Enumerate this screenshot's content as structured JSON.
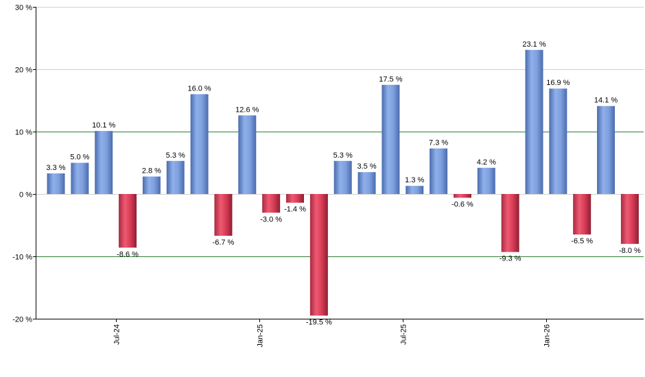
{
  "chart_data": {
    "type": "bar",
    "title": "",
    "xlabel": "",
    "ylabel": "",
    "ylim": [
      -20,
      30
    ],
    "y_ticks": [
      30,
      20,
      10,
      0,
      -10,
      -20
    ],
    "y_tick_labels": [
      "30 %",
      "20 %",
      "10 %",
      "0 %",
      "-10 %",
      "-20 %"
    ],
    "highlight_lines": [
      10,
      -10
    ],
    "grid": true,
    "legend": "none",
    "colors": {
      "positive": "#7fa0de",
      "positive_dark": "#4a6cae",
      "negative": "#e0465f",
      "negative_dark": "#8e1f33",
      "gridline": "#d0d0d0",
      "highlight_line": "#2e7d32",
      "axis": "#000000"
    },
    "values": [
      3.3,
      5.0,
      10.1,
      -8.6,
      2.8,
      5.3,
      16.0,
      -6.7,
      12.6,
      -3.0,
      -1.4,
      -19.5,
      5.3,
      3.5,
      17.5,
      1.3,
      7.3,
      -0.6,
      4.2,
      -9.3,
      23.1,
      16.9,
      -6.5,
      14.1,
      -8.0
    ],
    "value_labels": [
      "3.3 %",
      "5.0 %",
      "10.1 %",
      "-8.6 %",
      "2.8 %",
      "5.3 %",
      "16.0 %",
      "-6.7 %",
      "12.6 %",
      "-3.0 %",
      "-1.4 %",
      "-19.5 %",
      "5.3 %",
      "3.5 %",
      "17.5 %",
      "1.3 %",
      "7.3 %",
      "-0.6 %",
      "4.2 %",
      "-9.3 %",
      "23.1 %",
      "16.9 %",
      "-6.5 %",
      "14.1 %",
      "-8.0 %"
    ],
    "x_ticks": [
      {
        "label": "Jul-24",
        "after_bar": 2
      },
      {
        "label": "Jan-25",
        "after_bar": 8
      },
      {
        "label": "Jul-25",
        "after_bar": 14
      },
      {
        "label": "Jan-26",
        "after_bar": 20
      }
    ]
  }
}
